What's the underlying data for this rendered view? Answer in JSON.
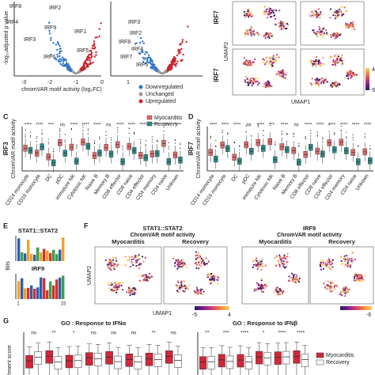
{
  "panel_labels": {
    "c": "C",
    "d": "D",
    "e": "E",
    "f": "F",
    "g": "G"
  },
  "volcano_left": {
    "y_label": "-log₁₀adjusted p value",
    "x_ticks": [
      "-3",
      "-2",
      "-1",
      "0",
      "1"
    ],
    "labels": [
      "IRF8",
      "IRF2",
      "IRF4",
      "IRF9",
      "IRF1",
      "IRF3",
      "IRF6",
      "IRF5"
    ]
  },
  "volcano_right": {
    "labels": [
      "IRF3",
      "IRF2",
      "IRF8",
      "IRF4",
      "IRF7",
      "IRF5"
    ]
  },
  "x_label_a": "chromVAR motif activity (log₂FC)",
  "legend_a": [
    "Downregulated",
    "Unchanged",
    "Upregulated"
  ],
  "umap_top": {
    "row_labels": [
      "IRF7",
      "IRF7"
    ],
    "y_label": "UMAP2",
    "x_label": "UMAP1",
    "colorbar": [
      "4",
      "-5"
    ]
  },
  "panel_c": {
    "gene": "IRF3",
    "y_label": "ChromVAR motif activity",
    "significance": [
      "****",
      "****",
      "***",
      "ns",
      "****",
      "****",
      "****",
      "ns",
      "****",
      "****",
      "****",
      "****",
      "****",
      "****"
    ]
  },
  "panel_d": {
    "gene": "IRF7",
    "y_label": "ChromVAR motif activity",
    "significance": [
      "****",
      "****",
      "****",
      "ns",
      "****",
      "**",
      "****",
      "ns",
      "****",
      "****",
      "****",
      "****",
      "****",
      "****"
    ]
  },
  "cell_types": [
    "CD14 monocyte",
    "CD16 monocyte",
    "DC",
    "pDC",
    "immature NK",
    "Cytotoxic NK",
    "Naive B",
    "Memory B",
    "CD8 effector",
    "CD8 naive",
    "CD4 effector",
    "CD4 memory",
    "CD4 naive",
    "Unkown"
  ],
  "legend_cd": [
    "Myocarditis",
    "Recovery"
  ],
  "panel_e": {
    "motifs": [
      "STAT1::STAT2",
      "IRF9"
    ],
    "y_label": "Bits",
    "positions": [
      "1",
      "15"
    ]
  },
  "panel_f": {
    "motifs": [
      {
        "title": "STAT1::STAT2",
        "subtitle": "ChromVAR motif activity",
        "colorbar": [
          "-5",
          "4"
        ]
      },
      {
        "title": "IRF9",
        "subtitle": "ChromVAR motif activity",
        "colorbar": [
          "-6"
        ]
      }
    ],
    "conditions": [
      "Myocarditis",
      "Recovery"
    ],
    "y_label": "UMAP2",
    "x_label": "UMAP1"
  },
  "panel_g": {
    "titles": [
      "GO : Response to IFNα",
      "GO : Response to IFNβ"
    ],
    "y_label": "ichment score",
    "significance_left": [
      "ns",
      "**",
      "*",
      "ns",
      "ns",
      "ns",
      "**",
      "ns"
    ],
    "significance_right": [
      "**",
      "***",
      "****",
      "*",
      "****",
      "****"
    ],
    "legend": [
      "Myocarditis",
      "Recovery"
    ]
  }
}
